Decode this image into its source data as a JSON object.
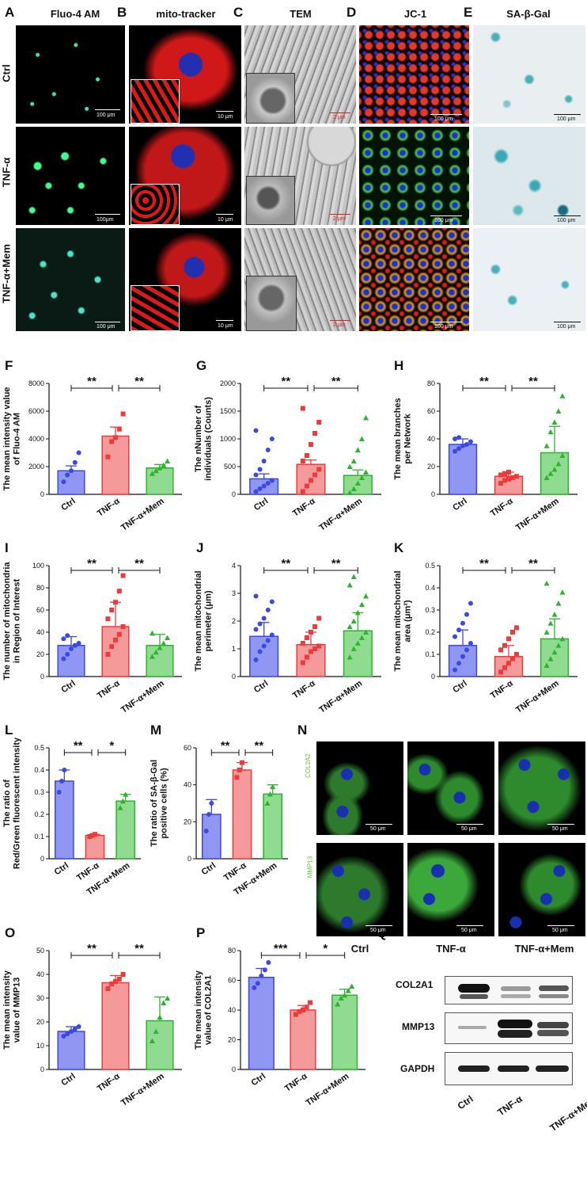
{
  "panel_letters": {
    "A": "A",
    "B": "B",
    "C": "C",
    "D": "D",
    "E": "E",
    "F": "F",
    "G": "G",
    "H": "H",
    "I": "I",
    "J": "J",
    "K": "K",
    "L": "L",
    "M": "M",
    "N": "N",
    "O": "O",
    "P": "P",
    "Q": "Q"
  },
  "image_columns": [
    {
      "title": "Fluo-4 AM",
      "color": "#8ccf4a"
    },
    {
      "title": "mito-tracker",
      "color": "#e0202a"
    },
    {
      "title": "TEM",
      "color": "#111111"
    },
    {
      "title": "JC-1",
      "color": "#e0202a"
    },
    {
      "title": "SA-β-Gal",
      "color": "#3aaed8"
    }
  ],
  "image_rows": [
    "Ctrl",
    "TNF-α",
    "TNF-α+Mem"
  ],
  "scale_bars": {
    "A": [
      "100 μm",
      "100μm",
      "100 μm"
    ],
    "B": [
      "10 μm",
      "10 μm",
      "10 μm"
    ],
    "C": [
      "2 μm",
      "2 μm",
      "2 μm"
    ],
    "D": [
      "100 μm",
      "100 μm",
      "100 μm"
    ],
    "E": [
      "100 μm",
      "100 μm",
      "100 μm"
    ]
  },
  "group_labels": [
    "Ctrl",
    "TNF-α",
    "TNF-α+Mem"
  ],
  "chart_data": [
    {
      "id": "F",
      "type": "bar",
      "title": "",
      "ylabel": "The mean intensity value of Fluo-4 AM",
      "categories": [
        "Ctrl",
        "TNF-α",
        "TNF-α+Mem"
      ],
      "values": [
        1700,
        4200,
        1900
      ],
      "errors": [
        350,
        650,
        250
      ],
      "ylim": [
        0,
        8000
      ],
      "yticks": [
        0,
        2000,
        4000,
        6000,
        8000
      ],
      "significance": [
        {
          "between": [
            0,
            1
          ],
          "label": "**"
        },
        {
          "between": [
            1,
            2
          ],
          "label": "**"
        }
      ],
      "points": [
        [
          900,
          1400,
          1700,
          2300,
          3000
        ],
        [
          2700,
          3800,
          4100,
          4700,
          5800
        ],
        [
          1500,
          1700,
          1900,
          2100,
          2400
        ]
      ]
    },
    {
      "id": "G",
      "type": "bar",
      "ylabel": "The nNumber of individuals (Counts)",
      "categories": [
        "Ctrl",
        "TNF-α",
        "TNF-α+Mem"
      ],
      "values": [
        280,
        540,
        340
      ],
      "errors": [
        90,
        80,
        100
      ],
      "ylim": [
        0,
        2000
      ],
      "yticks": [
        0,
        500,
        1000,
        1500,
        2000
      ],
      "significance": [
        {
          "between": [
            0,
            1
          ],
          "label": "**"
        },
        {
          "between": [
            1,
            2
          ],
          "label": "**"
        }
      ],
      "points": [
        [
          50,
          100,
          150,
          200,
          250,
          350,
          450,
          600,
          800,
          1000,
          1150
        ],
        [
          50,
          150,
          250,
          350,
          450,
          600,
          700,
          900,
          1100,
          1300,
          1550
        ],
        [
          30,
          100,
          200,
          300,
          400,
          500,
          600,
          800,
          1000,
          1380
        ]
      ]
    },
    {
      "id": "H",
      "type": "bar",
      "ylabel": "The mean branches per Network",
      "categories": [
        "Ctrl",
        "TNF-α",
        "TNF-α+Mem"
      ],
      "values": [
        36,
        13,
        30
      ],
      "errors": [
        4,
        3,
        19
      ],
      "ylim": [
        0,
        80
      ],
      "yticks": [
        0,
        20,
        40,
        60,
        80
      ],
      "significance": [
        {
          "between": [
            0,
            1
          ],
          "label": "**"
        },
        {
          "between": [
            1,
            2
          ],
          "label": "**"
        }
      ],
      "points": [
        [
          31,
          33,
          35,
          36,
          38,
          40,
          41
        ],
        [
          8,
          10,
          11,
          12,
          13,
          14,
          15,
          16
        ],
        [
          12,
          15,
          18,
          22,
          28,
          35,
          45,
          52,
          60,
          71
        ]
      ]
    },
    {
      "id": "I",
      "type": "bar",
      "ylabel": "The number of mitochondria in Region of Interest",
      "categories": [
        "Ctrl",
        "TNF-α",
        "TNF-α+Mem"
      ],
      "values": [
        28,
        45,
        28
      ],
      "errors": [
        8,
        22,
        10
      ],
      "ylim": [
        0,
        100
      ],
      "yticks": [
        0,
        20,
        40,
        60,
        80,
        100
      ],
      "significance": [
        {
          "between": [
            0,
            1
          ],
          "label": "**"
        },
        {
          "between": [
            1,
            2
          ],
          "label": "**"
        }
      ],
      "points": [
        [
          16,
          20,
          25,
          28,
          30,
          34,
          37
        ],
        [
          20,
          27,
          33,
          38,
          45,
          52,
          60,
          67,
          77,
          91
        ],
        [
          18,
          22,
          26,
          30,
          35,
          39
        ]
      ]
    },
    {
      "id": "J",
      "type": "bar",
      "ylabel": "The mean mitochondrial perimeter (μm)",
      "categories": [
        "Ctrl",
        "TNF-α",
        "TNF-α+Mem"
      ],
      "values": [
        1.45,
        1.15,
        1.65
      ],
      "errors": [
        0.5,
        0.45,
        0.65
      ],
      "ylim": [
        0,
        4
      ],
      "yticks": [
        0,
        1,
        2,
        3,
        4
      ],
      "significance": [
        {
          "between": [
            0,
            1
          ],
          "label": "**"
        },
        {
          "between": [
            1,
            2
          ],
          "label": "**"
        }
      ],
      "points": [
        [
          0.6,
          0.9,
          1.1,
          1.3,
          1.5,
          1.7,
          1.9,
          2.1,
          2.4,
          2.7,
          2.9
        ],
        [
          0.5,
          0.7,
          0.9,
          1.0,
          1.1,
          1.2,
          1.4,
          1.6,
          1.8,
          2.1
        ],
        [
          0.7,
          1.0,
          1.2,
          1.4,
          1.6,
          1.8,
          2.0,
          2.3,
          2.6,
          2.9,
          3.3,
          3.6
        ]
      ]
    },
    {
      "id": "K",
      "type": "bar",
      "ylabel": "The mean mitochondrial area (μm²)",
      "categories": [
        "Ctrl",
        "TNF-α",
        "TNF-α+Mem"
      ],
      "values": [
        0.14,
        0.09,
        0.17
      ],
      "errors": [
        0.07,
        0.05,
        0.09
      ],
      "ylim": [
        0,
        0.5
      ],
      "yticks": [
        0,
        0.1,
        0.2,
        0.3,
        0.4,
        0.5
      ],
      "significance": [
        {
          "between": [
            0,
            1
          ],
          "label": "**"
        },
        {
          "between": [
            1,
            2
          ],
          "label": "**"
        }
      ],
      "points": [
        [
          0.03,
          0.06,
          0.09,
          0.12,
          0.15,
          0.18,
          0.21,
          0.24,
          0.28,
          0.33
        ],
        [
          0.02,
          0.04,
          0.06,
          0.08,
          0.1,
          0.12,
          0.14,
          0.17,
          0.2,
          0.22
        ],
        [
          0.05,
          0.08,
          0.11,
          0.14,
          0.17,
          0.2,
          0.24,
          0.28,
          0.33,
          0.38,
          0.42
        ]
      ]
    },
    {
      "id": "L",
      "type": "bar",
      "ylabel": "The ratio of Red/Green fluorescent intensity",
      "categories": [
        "Ctrl",
        "TNF-α",
        "TNF-α+Mem"
      ],
      "values": [
        0.35,
        0.105,
        0.26
      ],
      "errors": [
        0.05,
        0.005,
        0.03
      ],
      "ylim": [
        0,
        0.5
      ],
      "yticks": [
        0,
        0.1,
        0.2,
        0.3,
        0.4,
        0.5
      ],
      "significance": [
        {
          "between": [
            0,
            1
          ],
          "label": "**"
        },
        {
          "between": [
            1,
            2
          ],
          "label": "*"
        }
      ],
      "points": [
        [
          0.3,
          0.35,
          0.4
        ],
        [
          0.1,
          0.105,
          0.11
        ],
        [
          0.23,
          0.26,
          0.29
        ]
      ]
    },
    {
      "id": "M",
      "type": "bar",
      "ylabel": "The ratio of SA-β-Gal positive cells (%)",
      "categories": [
        "Ctrl",
        "TNF-α",
        "TNF-α+Mem"
      ],
      "values": [
        24,
        48,
        35
      ],
      "errors": [
        8,
        4,
        5
      ],
      "ylim": [
        0,
        60
      ],
      "yticks": [
        0,
        20,
        40,
        60
      ],
      "significance": [
        {
          "between": [
            0,
            1
          ],
          "label": "**"
        },
        {
          "between": [
            1,
            2
          ],
          "label": "**"
        }
      ],
      "points": [
        [
          15,
          24,
          30
        ],
        [
          44,
          48,
          52
        ],
        [
          30,
          35,
          39
        ]
      ]
    },
    {
      "id": "O",
      "type": "bar",
      "ylabel": "The mean intensity value of MMP13",
      "categories": [
        "Ctrl",
        "TNF-α",
        "TNF-α+Mem"
      ],
      "values": [
        16,
        36.5,
        20.5
      ],
      "errors": [
        2,
        3,
        10
      ],
      "ylim": [
        0,
        50
      ],
      "yticks": [
        0,
        10,
        20,
        30,
        40,
        50
      ],
      "significance": [
        {
          "between": [
            0,
            1
          ],
          "label": "**"
        },
        {
          "between": [
            1,
            2
          ],
          "label": "**"
        }
      ],
      "points": [
        [
          14,
          15,
          16,
          17,
          18
        ],
        [
          34,
          36,
          37,
          38,
          40
        ],
        [
          12,
          16,
          22,
          28,
          30
        ]
      ]
    },
    {
      "id": "P",
      "type": "bar",
      "ylabel": "The mean intensity value of COL2A1",
      "categories": [
        "Ctrl",
        "TNF-α",
        "TNF-α+Mem"
      ],
      "values": [
        62,
        40,
        50
      ],
      "errors": [
        6,
        3,
        4
      ],
      "ylim": [
        0,
        80
      ],
      "yticks": [
        0,
        20,
        40,
        60,
        80
      ],
      "significance": [
        {
          "between": [
            0,
            1
          ],
          "label": "***"
        },
        {
          "between": [
            1,
            2
          ],
          "label": "*"
        }
      ],
      "points": [
        [
          55,
          58,
          63,
          67,
          72
        ],
        [
          37,
          39,
          40,
          42,
          45
        ],
        [
          44,
          48,
          50,
          53,
          56
        ]
      ]
    }
  ],
  "panel_N": {
    "rows": [
      "COL2A2",
      "MMP13"
    ],
    "columns": [
      "Ctrl",
      "TNF-α",
      "TNF-α+Mem"
    ],
    "scale": "50 μm"
  },
  "panel_Q": {
    "bands": [
      "COL2A1",
      "MMP13",
      "GAPDH"
    ],
    "lanes": [
      "Ctrl",
      "TNF-α",
      "TNF-α+Mem"
    ]
  },
  "colors": {
    "ctrl": "#3a48e8",
    "ctrl_fill": "#8f97f2",
    "tnf": "#f03a3a",
    "tnf_fill": "#f59a9a",
    "mem": "#2fb32f",
    "mem_fill": "#8fdb8f"
  }
}
